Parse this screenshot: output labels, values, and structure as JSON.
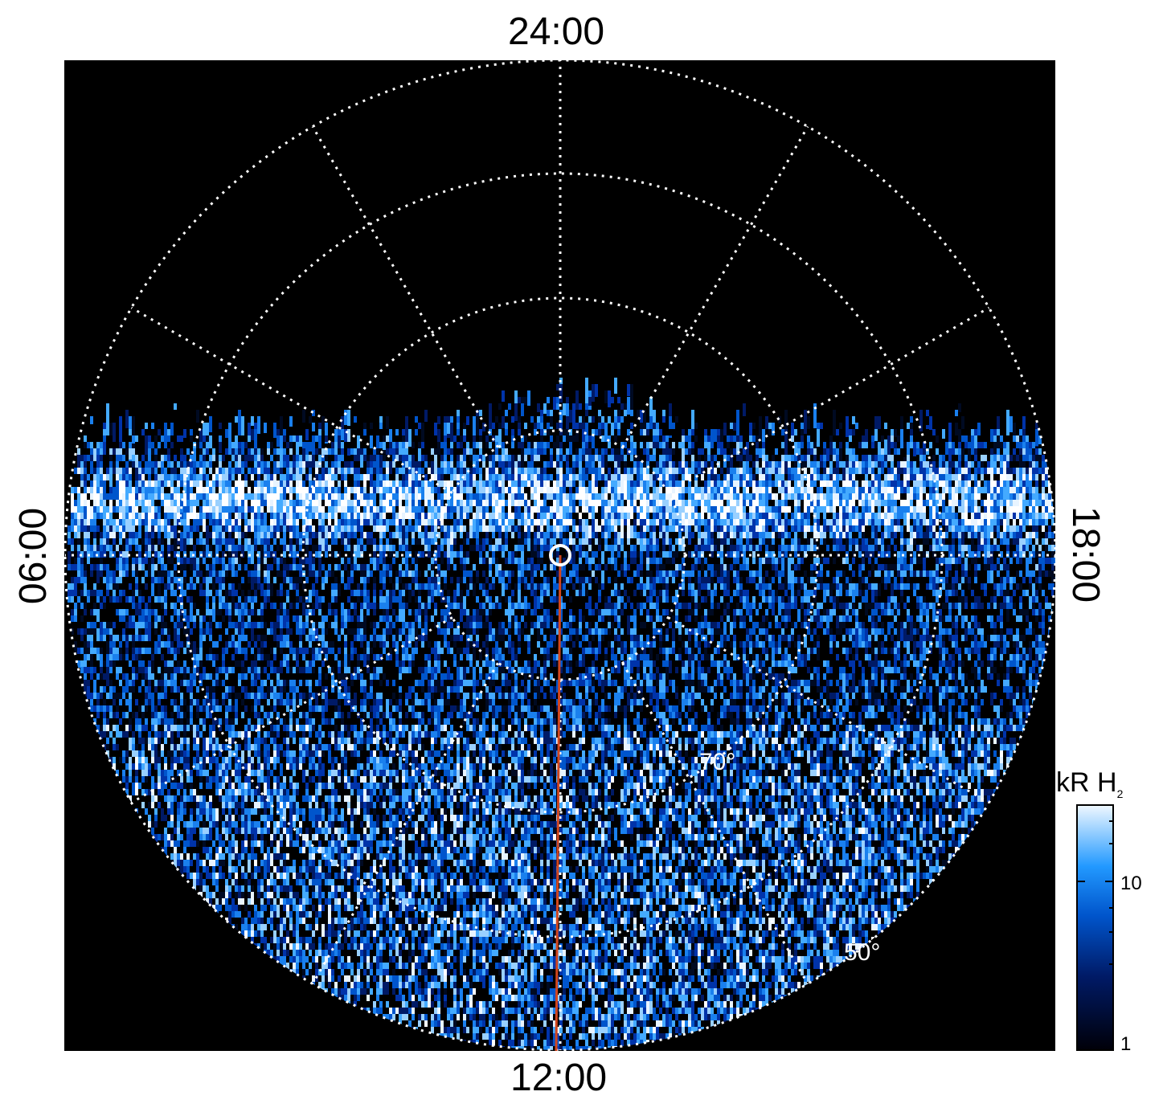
{
  "labels": {
    "top": "24:00",
    "bottom": "12:00",
    "left": "06:00",
    "right": "18:00"
  },
  "grid_labels": {
    "lat_70": "70°",
    "lat_50": "50°"
  },
  "colorbar": {
    "title": "kR H",
    "title_sub": "2",
    "ticks": [
      "10",
      "1"
    ],
    "colors": [
      "#000010",
      "#001a66",
      "#0066dd",
      "#33aaff",
      "#e6f4ff"
    ]
  },
  "colors": {
    "background": "#000000",
    "grid": "#ffffff",
    "meridian_line": "#d2461e"
  }
}
